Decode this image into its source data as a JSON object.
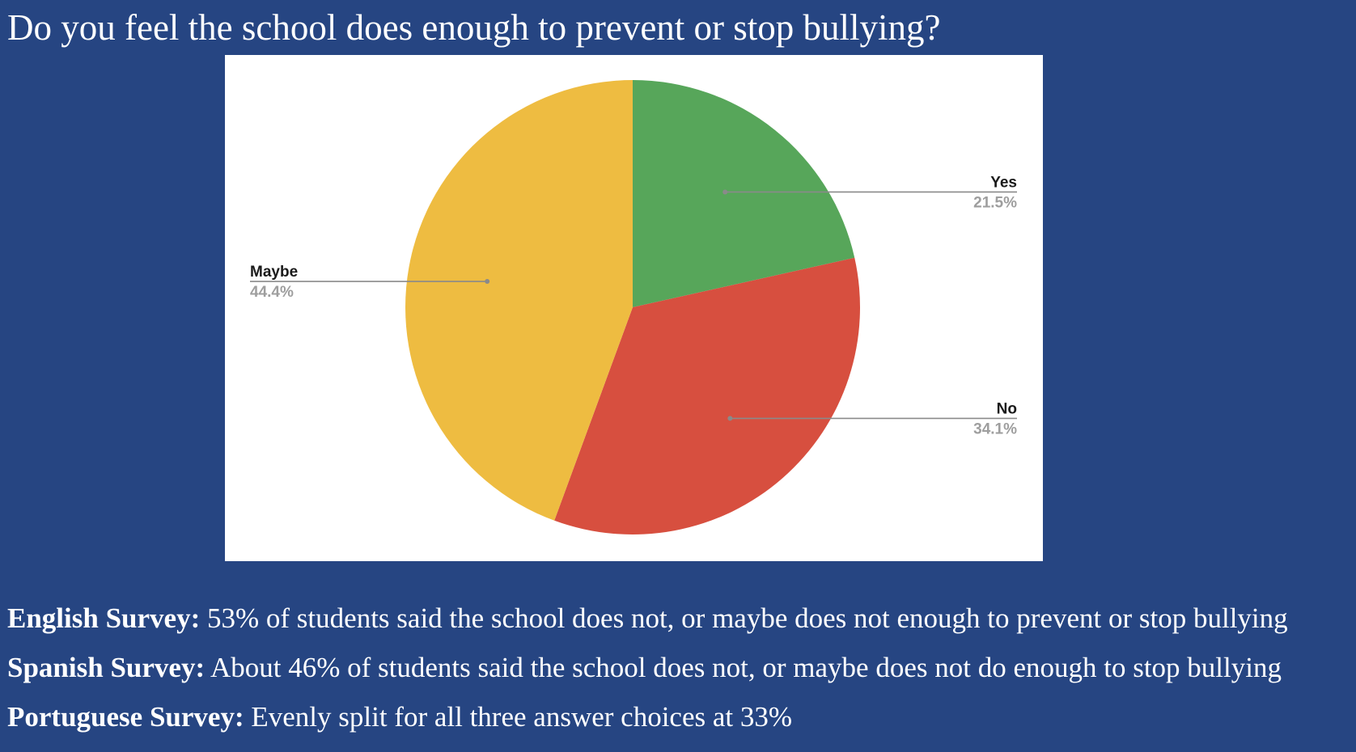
{
  "title": "Do you feel the school does enough to prevent or stop bullying?",
  "chart_data": {
    "type": "pie",
    "start_angle_deg": 0,
    "direction": "clockwise",
    "slices": [
      {
        "label": "Yes",
        "value": 21.5,
        "display": "21.5%",
        "color": "#57A65A"
      },
      {
        "label": "No",
        "value": 34.1,
        "display": "34.1%",
        "color": "#D74F3F"
      },
      {
        "label": "Maybe",
        "value": 44.4,
        "display": "44.4%",
        "color": "#EEBC41"
      }
    ]
  },
  "notes": [
    {
      "heading": "English Survey:",
      "text": " 53% of students said the school does not, or maybe does not enough to prevent or stop bullying"
    },
    {
      "heading": "Spanish Survey:",
      "text": " About 46% of students said the school does not, or maybe does not do enough to stop bullying"
    },
    {
      "heading": "Portuguese Survey:",
      "text": " Evenly split for all three answer choices at 33%"
    }
  ]
}
